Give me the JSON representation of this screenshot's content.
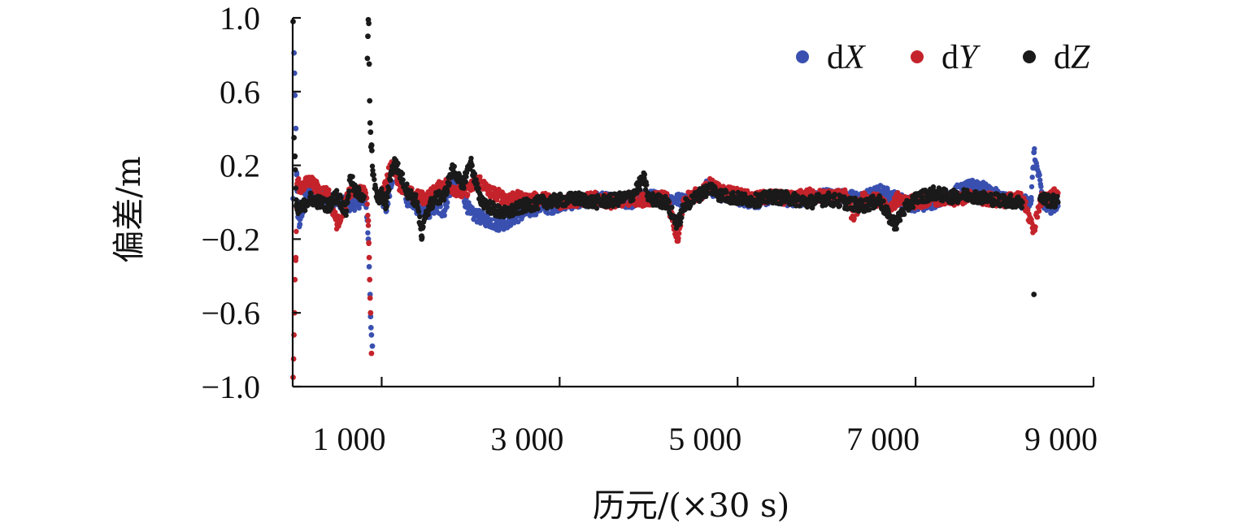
{
  "chart_data": {
    "type": "scatter",
    "title": "",
    "xlabel": "历元/(×30 s)",
    "ylabel": "偏差/m",
    "xlim": [
      0,
      9000
    ],
    "ylim": [
      -1.0,
      1.0
    ],
    "x_ticks": [
      {
        "value": 1000,
        "label": "1 000"
      },
      {
        "value": 3000,
        "label": "3 000"
      },
      {
        "value": 5000,
        "label": "5 000"
      },
      {
        "value": 7000,
        "label": "7 000"
      },
      {
        "value": 9000,
        "label": "9 000"
      }
    ],
    "y_ticks": [
      {
        "value": 1.0,
        "label": "1.0"
      },
      {
        "value": 0.6,
        "label": "0.6"
      },
      {
        "value": 0.2,
        "label": "0.2"
      },
      {
        "value": -0.2,
        "label": "−0.2"
      },
      {
        "value": -0.6,
        "label": "−0.6"
      },
      {
        "value": -1.0,
        "label": "−1.0"
      }
    ],
    "grid": false,
    "legend_position": "top-right",
    "series": [
      {
        "name": "dX",
        "base": "d",
        "italic": "X",
        "color": "#3a50b0",
        "points": [
          [
            5,
            0.02
          ],
          [
            15,
            0.81
          ],
          [
            20,
            0.7
          ],
          [
            25,
            0.58
          ],
          [
            35,
            0.4
          ],
          [
            45,
            0.15
          ],
          [
            60,
            -0.08
          ],
          [
            80,
            -0.12
          ],
          [
            150,
            0.05
          ],
          [
            300,
            0.04
          ],
          [
            500,
            0.01
          ],
          [
            650,
            -0.02
          ],
          [
            820,
            0.02
          ],
          [
            850,
            -0.2
          ],
          [
            860,
            -0.35
          ],
          [
            870,
            -0.5
          ],
          [
            875,
            -0.62
          ],
          [
            880,
            -0.68
          ],
          [
            885,
            -0.72
          ],
          [
            895,
            -0.78
          ],
          [
            1000,
            0.03
          ],
          [
            1050,
            -0.05
          ],
          [
            1100,
            0.1
          ],
          [
            1150,
            0.18
          ],
          [
            1200,
            0.12
          ],
          [
            1300,
            0.0
          ],
          [
            1400,
            -0.03
          ],
          [
            1500,
            -0.06
          ],
          [
            1600,
            -0.03
          ],
          [
            1700,
            -0.05
          ],
          [
            1800,
            0.12
          ],
          [
            1900,
            0.05
          ],
          [
            2000,
            -0.06
          ],
          [
            2100,
            -0.08
          ],
          [
            2200,
            -0.1
          ],
          [
            2300,
            -0.12
          ],
          [
            2400,
            -0.11
          ],
          [
            2500,
            -0.08
          ],
          [
            2600,
            -0.06
          ],
          [
            2700,
            -0.04
          ],
          [
            2800,
            -0.02
          ],
          [
            2900,
            -0.03
          ],
          [
            3000,
            -0.01
          ],
          [
            3200,
            0.0
          ],
          [
            3400,
            0.02
          ],
          [
            3600,
            0.01
          ],
          [
            3800,
            0.0
          ],
          [
            4000,
            0.03
          ],
          [
            4200,
            0.02
          ],
          [
            4400,
            0.01
          ],
          [
            4600,
            0.05
          ],
          [
            4650,
            0.09
          ],
          [
            4800,
            0.04
          ],
          [
            5000,
            0.02
          ],
          [
            5200,
            0.0
          ],
          [
            5400,
            0.03
          ],
          [
            5600,
            0.01
          ],
          [
            5800,
            0.02
          ],
          [
            6000,
            0.04
          ],
          [
            6200,
            0.03
          ],
          [
            6400,
            0.02
          ],
          [
            6600,
            0.06
          ],
          [
            6700,
            0.04
          ],
          [
            6800,
            0.02
          ],
          [
            6900,
            0.0
          ],
          [
            7000,
            -0.02
          ],
          [
            7200,
            0.0
          ],
          [
            7400,
            0.05
          ],
          [
            7600,
            0.08
          ],
          [
            7700,
            0.1
          ],
          [
            7800,
            0.06
          ],
          [
            8000,
            0.02
          ],
          [
            8200,
            0.0
          ],
          [
            8300,
            0.01
          ],
          [
            8330,
            0.27
          ],
          [
            8450,
            -0.03
          ],
          [
            8600,
            -0.02
          ]
        ]
      },
      {
        "name": "dY",
        "base": "d",
        "italic": "Y",
        "color": "#c4232b",
        "points": [
          [
            5,
            -0.95
          ],
          [
            10,
            -0.85
          ],
          [
            15,
            -0.72
          ],
          [
            20,
            -0.6
          ],
          [
            25,
            -0.42
          ],
          [
            35,
            -0.3
          ],
          [
            50,
            0.1
          ],
          [
            100,
            0.08
          ],
          [
            200,
            0.12
          ],
          [
            300,
            0.06
          ],
          [
            400,
            0.05
          ],
          [
            500,
            -0.12
          ],
          [
            650,
            0.06
          ],
          [
            820,
            0.05
          ],
          [
            850,
            -0.1
          ],
          [
            855,
            -0.22
          ],
          [
            860,
            -0.3
          ],
          [
            865,
            -0.42
          ],
          [
            870,
            -0.52
          ],
          [
            875,
            -0.6
          ],
          [
            885,
            -0.82
          ],
          [
            1000,
            0.05
          ],
          [
            1050,
            0.1
          ],
          [
            1100,
            0.2
          ],
          [
            1150,
            0.18
          ],
          [
            1200,
            0.1
          ],
          [
            1300,
            0.05
          ],
          [
            1400,
            0.03
          ],
          [
            1500,
            0.02
          ],
          [
            1600,
            0.06
          ],
          [
            1700,
            0.1
          ],
          [
            1800,
            0.08
          ],
          [
            1900,
            0.05
          ],
          [
            2000,
            0.08
          ],
          [
            2100,
            0.12
          ],
          [
            2200,
            0.06
          ],
          [
            2300,
            0.04
          ],
          [
            2400,
            0.02
          ],
          [
            2500,
            0.03
          ],
          [
            2600,
            0.01
          ],
          [
            2800,
            0.02
          ],
          [
            3000,
            0.0
          ],
          [
            3200,
            0.01
          ],
          [
            3400,
            0.02
          ],
          [
            3600,
            0.0
          ],
          [
            3800,
            0.02
          ],
          [
            4000,
            0.01
          ],
          [
            4200,
            0.03
          ],
          [
            4400,
            0.02
          ],
          [
            4600,
            0.05
          ],
          [
            4700,
            0.1
          ],
          [
            4800,
            0.06
          ],
          [
            5000,
            0.04
          ],
          [
            5200,
            0.02
          ],
          [
            5400,
            0.03
          ],
          [
            5600,
            0.02
          ],
          [
            5800,
            0.04
          ],
          [
            6000,
            0.03
          ],
          [
            6200,
            0.04
          ],
          [
            6300,
            -0.08
          ],
          [
            6400,
            0.02
          ],
          [
            6600,
            0.01
          ],
          [
            6700,
            -0.05
          ],
          [
            6800,
            0.02
          ],
          [
            7000,
            0.0
          ],
          [
            7200,
            0.02
          ],
          [
            7400,
            0.01
          ],
          [
            7600,
            0.03
          ],
          [
            7800,
            0.02
          ],
          [
            8000,
            0.01
          ],
          [
            8200,
            0.02
          ],
          [
            8330,
            -0.15
          ],
          [
            8400,
            0.01
          ],
          [
            8600,
            0.05
          ],
          [
            4330,
            -0.21
          ]
        ]
      },
      {
        "name": "dZ",
        "base": "d",
        "italic": "Z",
        "color": "#1a1a1a",
        "points": [
          [
            5,
            0.98
          ],
          [
            15,
            0.35
          ],
          [
            25,
            0.25
          ],
          [
            40,
            -0.02
          ],
          [
            60,
            -0.05
          ],
          [
            100,
            -0.03
          ],
          [
            200,
            0.02
          ],
          [
            300,
            0.0
          ],
          [
            400,
            -0.02
          ],
          [
            500,
            0.04
          ],
          [
            600,
            -0.05
          ],
          [
            650,
            0.14
          ],
          [
            700,
            0.06
          ],
          [
            800,
            0.03
          ],
          [
            840,
            0.78
          ],
          [
            845,
            0.9
          ],
          [
            850,
            0.99
          ],
          [
            855,
            0.97
          ],
          [
            860,
            0.75
          ],
          [
            865,
            0.55
          ],
          [
            870,
            0.43
          ],
          [
            875,
            0.38
          ],
          [
            880,
            0.3
          ],
          [
            890,
            0.28
          ],
          [
            900,
            0.15
          ],
          [
            950,
            0.02
          ],
          [
            1000,
            0.04
          ],
          [
            1050,
            -0.02
          ],
          [
            1100,
            0.15
          ],
          [
            1150,
            0.22
          ],
          [
            1200,
            0.16
          ],
          [
            1300,
            0.05
          ],
          [
            1400,
            0.0
          ],
          [
            1450,
            -0.2
          ],
          [
            1500,
            -0.05
          ],
          [
            1600,
            0.02
          ],
          [
            1700,
            0.03
          ],
          [
            1800,
            0.18
          ],
          [
            1850,
            0.15
          ],
          [
            1900,
            0.08
          ],
          [
            2000,
            0.22
          ],
          [
            2100,
            0.02
          ],
          [
            2200,
            -0.02
          ],
          [
            2300,
            -0.05
          ],
          [
            2400,
            -0.06
          ],
          [
            2500,
            -0.04
          ],
          [
            2600,
            -0.02
          ],
          [
            2800,
            0.0
          ],
          [
            3000,
            0.01
          ],
          [
            3200,
            0.02
          ],
          [
            3400,
            0.0
          ],
          [
            3600,
            0.01
          ],
          [
            3800,
            0.03
          ],
          [
            3950,
            0.13
          ],
          [
            4000,
            0.02
          ],
          [
            4200,
            0.0
          ],
          [
            4300,
            -0.1
          ],
          [
            4330,
            -0.12
          ],
          [
            4400,
            -0.02
          ],
          [
            4600,
            0.05
          ],
          [
            4700,
            0.08
          ],
          [
            4800,
            0.04
          ],
          [
            5000,
            0.02
          ],
          [
            5200,
            0.01
          ],
          [
            5400,
            0.03
          ],
          [
            5600,
            0.02
          ],
          [
            5800,
            0.0
          ],
          [
            6000,
            0.02
          ],
          [
            6200,
            0.0
          ],
          [
            6400,
            -0.02
          ],
          [
            6600,
            0.01
          ],
          [
            6700,
            -0.08
          ],
          [
            6780,
            -0.12
          ],
          [
            6850,
            -0.05
          ],
          [
            7000,
            0.02
          ],
          [
            7200,
            0.05
          ],
          [
            7400,
            0.03
          ],
          [
            7600,
            0.04
          ],
          [
            7800,
            0.02
          ],
          [
            8000,
            0.01
          ],
          [
            8200,
            0.0
          ],
          [
            8330,
            -0.5
          ],
          [
            8400,
            0.02
          ],
          [
            8600,
            0.0
          ]
        ]
      }
    ]
  }
}
